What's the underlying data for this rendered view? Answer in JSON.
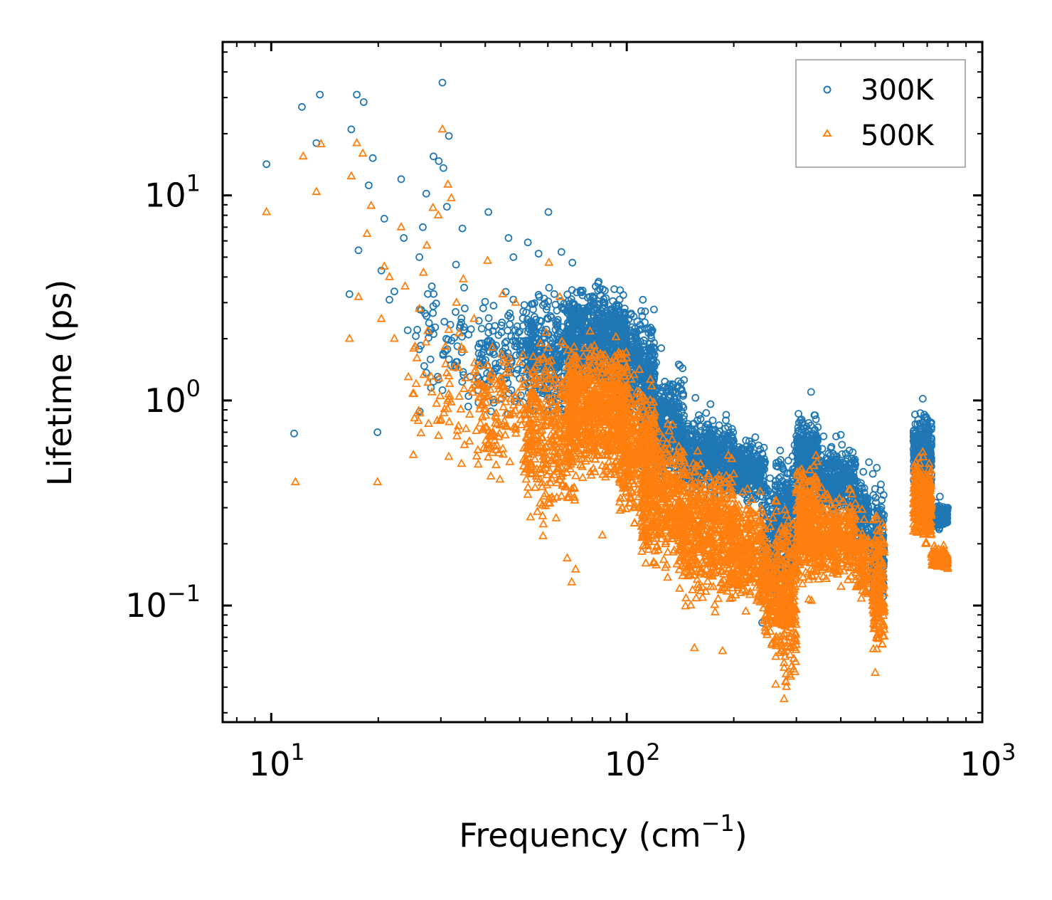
{
  "chart_data": {
    "type": "scatter",
    "xscale": "log",
    "yscale": "log",
    "xlabel": "Frequency (cm",
    "xlabel_sup": "−1",
    "xlabel_suffix": ")",
    "ylabel": "Lifetime (ps)",
    "xlim": [
      7.3,
      1000
    ],
    "ylim": [
      0.027,
      56
    ],
    "xticks": [
      {
        "value": 10,
        "base": "10",
        "exp": "1"
      },
      {
        "value": 100,
        "base": "10",
        "exp": "2"
      },
      {
        "value": 1000,
        "base": "10",
        "exp": "3"
      }
    ],
    "yticks": [
      {
        "value": 0.1,
        "base": "10",
        "exp": "−1"
      },
      {
        "value": 1,
        "base": "10",
        "exp": "0"
      },
      {
        "value": 10,
        "base": "10",
        "exp": "1"
      }
    ],
    "legend": {
      "location": "top-right"
    },
    "series": [
      {
        "name": "300K",
        "marker": "circle",
        "color": "#1f77b4",
        "points": [
          [
            9.7,
            14.2
          ],
          [
            11.6,
            0.69
          ],
          [
            12.2,
            27
          ],
          [
            13.4,
            18
          ],
          [
            13.7,
            31
          ],
          [
            16.8,
            21
          ],
          [
            16.6,
            3.3
          ],
          [
            17.6,
            5.4
          ],
          [
            17.4,
            31
          ],
          [
            18.2,
            28.5
          ],
          [
            18.8,
            11.2
          ],
          [
            19.3,
            15.2
          ],
          [
            19.9,
            0.7
          ],
          [
            20.4,
            4.3
          ],
          [
            20.8,
            7.7
          ],
          [
            21.5,
            3.1
          ],
          [
            22.2,
            3.4
          ],
          [
            23.2,
            12
          ],
          [
            23.6,
            6.2
          ],
          [
            24.2,
            2.2
          ],
          [
            26.1,
            5
          ],
          [
            26.7,
            7
          ],
          [
            27.3,
            10.2
          ],
          [
            28.3,
            3.6
          ],
          [
            28.6,
            15.5
          ],
          [
            29.6,
            14.7
          ],
          [
            30.3,
            35.5
          ],
          [
            30.5,
            13.6
          ],
          [
            31.6,
            19.5
          ],
          [
            31.2,
            8.8
          ],
          [
            33.1,
            4.6
          ],
          [
            34.5,
            6.9
          ],
          [
            40.8,
            8.3
          ],
          [
            46.5,
            6.2
          ],
          [
            48,
            5
          ],
          [
            52.7,
            5.9
          ],
          [
            56.5,
            5.2
          ],
          [
            60.2,
            8.3
          ],
          [
            65.5,
            5.3
          ],
          [
            70.3,
            4.7
          ],
          [
            84,
            3.5
          ],
          [
            111,
            3.1
          ],
          [
            125,
            1.8
          ],
          [
            140,
            1.5
          ],
          [
            156,
            1.03
          ],
          [
            172,
            0.96
          ],
          [
            190,
            0.8
          ],
          [
            270,
            0.57
          ],
          [
            330,
            1.1
          ],
          [
            400,
            0.68
          ],
          [
            480,
            0.5
          ],
          [
            505,
            0.47
          ],
          [
            680,
            1.02
          ],
          [
            760,
            0.34
          ],
          [
            800,
            0.3
          ]
        ],
        "bands": [
          {
            "x": [
              25,
              40
            ],
            "y": [
              0.7,
              4.5
            ],
            "n": 70
          },
          {
            "x": [
              38,
              55
            ],
            "y": [
              0.75,
              4
            ],
            "n": 160
          },
          {
            "x": [
              52,
              72
            ],
            "y": [
              0.7,
              4
            ],
            "n": 340
          },
          {
            "x": [
              68,
              100
            ],
            "y": [
              0.9,
              4.2
            ],
            "n": 750
          },
          {
            "x": [
              95,
              120
            ],
            "y": [
              0.7,
              3.2
            ],
            "n": 380
          },
          {
            "x": [
              110,
              145
            ],
            "y": [
              0.35,
              1.7
            ],
            "n": 420
          },
          {
            "x": [
              140,
              200
            ],
            "y": [
              0.3,
              0.95
            ],
            "n": 550
          },
          {
            "x": [
              195,
              245
            ],
            "y": [
              0.3,
              0.7
            ],
            "n": 320
          },
          {
            "x": [
              240,
              265
            ],
            "y": [
              0.07,
              0.55
            ],
            "n": 150
          },
          {
            "x": [
              262,
              300
            ],
            "y": [
              0.1,
              0.68
            ],
            "n": 300
          },
          {
            "x": [
              300,
              345
            ],
            "y": [
              0.3,
              0.95
            ],
            "n": 330
          },
          {
            "x": [
              345,
              440
            ],
            "y": [
              0.25,
              0.68
            ],
            "n": 330
          },
          {
            "x": [
              440,
              480
            ],
            "y": [
              0.15,
              0.5
            ],
            "n": 110
          },
          {
            "x": [
              490,
              530
            ],
            "y": [
              0.08,
              0.48
            ],
            "n": 180
          },
          {
            "x": [
              640,
              680
            ],
            "y": [
              0.32,
              0.92
            ],
            "n": 200
          },
          {
            "x": [
              680,
              720
            ],
            "y": [
              0.3,
              0.95
            ],
            "n": 190
          },
          {
            "x": [
              720,
              800
            ],
            "y": [
              0.22,
              0.33
            ],
            "n": 110
          }
        ]
      },
      {
        "name": "500K",
        "marker": "triangle",
        "color": "#ff7f0e",
        "points": [
          [
            9.7,
            8.3
          ],
          [
            11.7,
            0.4
          ],
          [
            12.3,
            15.5
          ],
          [
            13.4,
            10.4
          ],
          [
            13.8,
            17.8
          ],
          [
            16.6,
            2
          ],
          [
            16.8,
            12.4
          ],
          [
            17.4,
            18
          ],
          [
            17.6,
            3.2
          ],
          [
            18.1,
            16
          ],
          [
            18.6,
            6.5
          ],
          [
            19.1,
            8.9
          ],
          [
            19.9,
            0.4
          ],
          [
            20.4,
            2.5
          ],
          [
            20.8,
            4.5
          ],
          [
            21.5,
            4
          ],
          [
            22.2,
            2
          ],
          [
            23.2,
            7
          ],
          [
            23.8,
            3.6
          ],
          [
            24.3,
            1.3
          ],
          [
            26.1,
            2.8
          ],
          [
            26.8,
            4.2
          ],
          [
            27.4,
            5.7
          ],
          [
            28.5,
            8.7
          ],
          [
            29.5,
            8
          ],
          [
            30.3,
            21
          ],
          [
            31.4,
            11.3
          ],
          [
            32.1,
            9.7
          ],
          [
            33.2,
            3
          ],
          [
            34.7,
            3.9
          ],
          [
            37.2,
            2.5
          ],
          [
            40.6,
            4.8
          ],
          [
            44.8,
            3.3
          ],
          [
            48.7,
            3
          ],
          [
            60.4,
            4.7
          ],
          [
            64.8,
            3.2
          ],
          [
            70,
            0.13
          ],
          [
            68,
            0.17
          ],
          [
            71.8,
            0.15
          ],
          [
            85.4,
            0.22
          ],
          [
            155,
            0.062
          ],
          [
            186,
            0.06
          ],
          [
            277,
            0.035
          ],
          [
            500,
            0.047
          ],
          [
            680,
            0.56
          ]
        ],
        "bands": [
          {
            "x": [
              25,
              40
            ],
            "y": [
              0.4,
              2.8
            ],
            "n": 70
          },
          {
            "x": [
              38,
              55
            ],
            "y": [
              0.3,
              2.6
            ],
            "n": 160
          },
          {
            "x": [
              52,
              72
            ],
            "y": [
              0.2,
              2.5
            ],
            "n": 340
          },
          {
            "x": [
              68,
              100
            ],
            "y": [
              0.35,
              2.4
            ],
            "n": 750
          },
          {
            "x": [
              95,
              120
            ],
            "y": [
              0.2,
              1.7
            ],
            "n": 380
          },
          {
            "x": [
              110,
              145
            ],
            "y": [
              0.12,
              0.95
            ],
            "n": 420
          },
          {
            "x": [
              140,
              200
            ],
            "y": [
              0.08,
              0.65
            ],
            "n": 550
          },
          {
            "x": [
              195,
              245
            ],
            "y": [
              0.08,
              0.42
            ],
            "n": 320
          },
          {
            "x": [
              240,
              265
            ],
            "y": [
              0.05,
              0.3
            ],
            "n": 150
          },
          {
            "x": [
              262,
              300
            ],
            "y": [
              0.034,
              0.38
            ],
            "n": 300
          },
          {
            "x": [
              300,
              345
            ],
            "y": [
              0.1,
              0.6
            ],
            "n": 330
          },
          {
            "x": [
              345,
              440
            ],
            "y": [
              0.11,
              0.42
            ],
            "n": 330
          },
          {
            "x": [
              440,
              480
            ],
            "y": [
              0.09,
              0.3
            ],
            "n": 110
          },
          {
            "x": [
              490,
              530
            ],
            "y": [
              0.046,
              0.36
            ],
            "n": 180
          },
          {
            "x": [
              640,
              680
            ],
            "y": [
              0.2,
              0.58
            ],
            "n": 200
          },
          {
            "x": [
              680,
              720
            ],
            "y": [
              0.18,
              0.56
            ],
            "n": 190
          },
          {
            "x": [
              720,
              800
            ],
            "y": [
              0.14,
              0.2
            ],
            "n": 110
          }
        ]
      }
    ]
  }
}
